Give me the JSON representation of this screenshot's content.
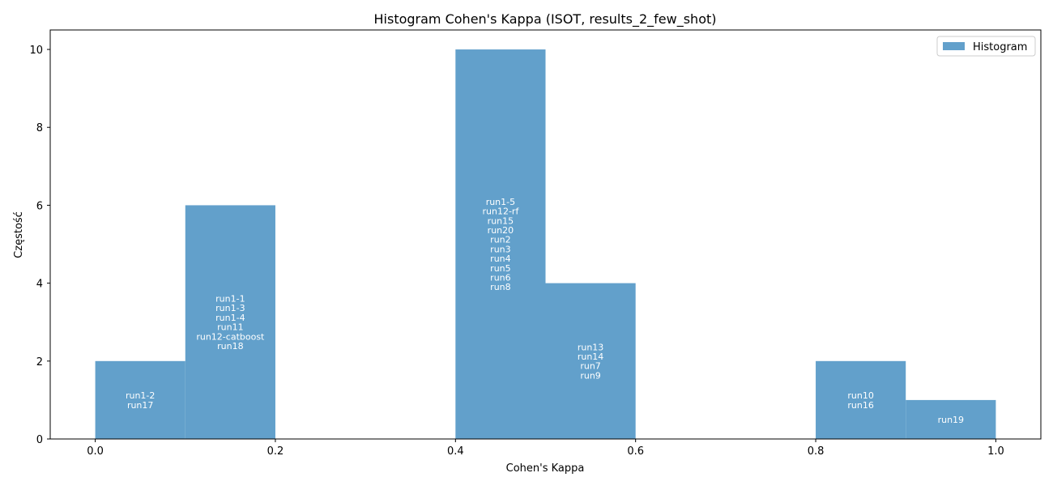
{
  "chart_data": {
    "type": "bar",
    "title": "Histogram Cohen's Kappa (ISOT, results_2_few_shot)",
    "xlabel": "Cohen's Kappa",
    "ylabel": "Częstość",
    "xlim": [
      -0.05,
      1.05
    ],
    "ylim": [
      0,
      10.5
    ],
    "xticks": [
      "0.0",
      "0.2",
      "0.4",
      "0.6",
      "0.8",
      "1.0"
    ],
    "yticks": [
      "0",
      "2",
      "4",
      "6",
      "8",
      "10"
    ],
    "grid": false,
    "color": "#62a0cb",
    "legend": {
      "label": "Histogram",
      "position": "top-right"
    },
    "bins": [
      {
        "start": 0.0,
        "end": 0.1,
        "count": 2,
        "labels": [
          "run1-2",
          "run17"
        ]
      },
      {
        "start": 0.1,
        "end": 0.2,
        "count": 6,
        "labels": [
          "run1-1",
          "run1-3",
          "run1-4",
          "run11",
          "run12-catboost",
          "run18"
        ]
      },
      {
        "start": 0.2,
        "end": 0.3,
        "count": 0,
        "labels": []
      },
      {
        "start": 0.3,
        "end": 0.4,
        "count": 0,
        "labels": []
      },
      {
        "start": 0.4,
        "end": 0.5,
        "count": 10,
        "labels": [
          "run1-5",
          "run12-rf",
          "run15",
          "run20",
          "run2",
          "run3",
          "run4",
          "run5",
          "run6",
          "run8"
        ]
      },
      {
        "start": 0.5,
        "end": 0.6,
        "count": 4,
        "labels": [
          "run13",
          "run14",
          "run7",
          "run9"
        ]
      },
      {
        "start": 0.6,
        "end": 0.7,
        "count": 0,
        "labels": []
      },
      {
        "start": 0.7,
        "end": 0.8,
        "count": 0,
        "labels": []
      },
      {
        "start": 0.8,
        "end": 0.9,
        "count": 2,
        "labels": [
          "run10",
          "run16"
        ]
      },
      {
        "start": 0.9,
        "end": 1.0,
        "count": 1,
        "labels": [
          "run19"
        ]
      }
    ]
  }
}
